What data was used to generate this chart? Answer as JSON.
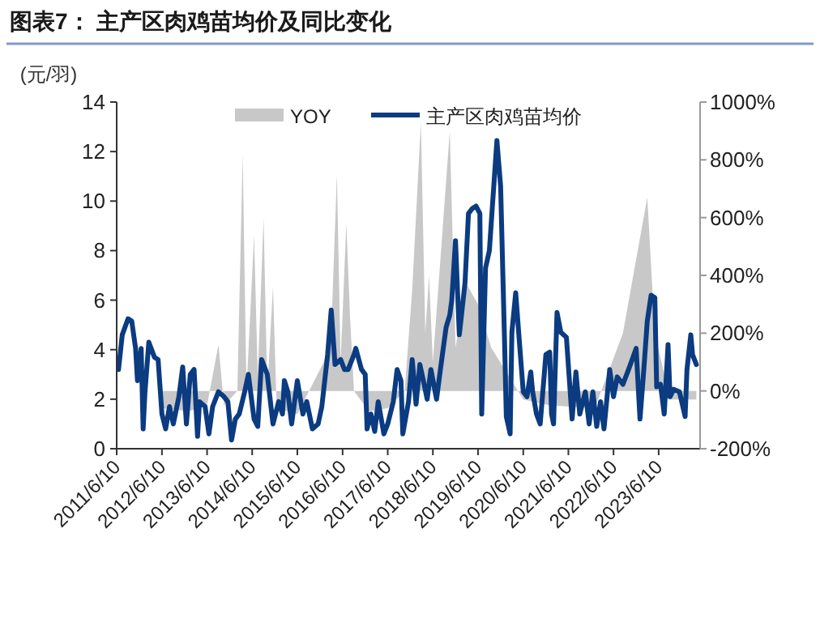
{
  "chart_data": {
    "type": "line",
    "title": "图表7：  主产区肉鸡苗均价及同比变化",
    "ylabel": "(元/羽)",
    "xlim": [
      "2011-06-10",
      "2024-05-10"
    ],
    "xticks": [
      {
        "value": "2011-06-10",
        "label": "2011/6/10"
      },
      {
        "value": "2012-06-10",
        "label": "2012/6/10"
      },
      {
        "value": "2013-06-10",
        "label": "2013/6/10"
      },
      {
        "value": "2014-06-10",
        "label": "2014/6/10"
      },
      {
        "value": "2015-06-10",
        "label": "2015/6/10"
      },
      {
        "value": "2016-06-10",
        "label": "2016/6/10"
      },
      {
        "value": "2017-06-10",
        "label": "2017/6/10"
      },
      {
        "value": "2018-06-10",
        "label": "2018/6/10"
      },
      {
        "value": "2019-06-10",
        "label": "2019/6/10"
      },
      {
        "value": "2020-06-10",
        "label": "2020/6/10"
      },
      {
        "value": "2021-06-10",
        "label": "2021/6/10"
      },
      {
        "value": "2022-06-10",
        "label": "2022/6/10"
      },
      {
        "value": "2023-06-10",
        "label": "2023/6/10"
      }
    ],
    "ylim": [
      0,
      14
    ],
    "yticks": [
      0,
      2,
      4,
      6,
      8,
      10,
      12,
      14
    ],
    "y2lim": [
      -200,
      1000
    ],
    "y2ticks": [
      {
        "value": -200,
        "label": "-200%"
      },
      {
        "value": 0,
        "label": "0%"
      },
      {
        "value": 200,
        "label": "200%"
      },
      {
        "value": 400,
        "label": "400%"
      },
      {
        "value": 600,
        "label": "600%"
      },
      {
        "value": 800,
        "label": "800%"
      },
      {
        "value": 1000,
        "label": "1000%"
      }
    ],
    "legend": "top",
    "series": [
      {
        "name": "YOY",
        "type": "area",
        "axis": "y2",
        "color": "#c8c8c8",
        "x": [
          "2012-06-10",
          "2013-01-10",
          "2013-06-10",
          "2013-09-10",
          "2013-10-25",
          "2014-02-10",
          "2014-03-25",
          "2014-04-25",
          "2014-06-25",
          "2014-07-25",
          "2014-09-10",
          "2014-10-10",
          "2014-11-25",
          "2014-12-25",
          "2015-06-10",
          "2016-01-10",
          "2016-03-10",
          "2016-04-25",
          "2016-05-25",
          "2016-07-10",
          "2016-08-10",
          "2016-09-10",
          "2017-01-10",
          "2017-06-10",
          "2017-10-25",
          "2017-12-25",
          "2018-03-05",
          "2018-04-10",
          "2018-05-10",
          "2018-06-10",
          "2018-10-25",
          "2018-12-10",
          "2019-03-10",
          "2019-06-10",
          "2019-09-25",
          "2020-06-10",
          "2021-01-10",
          "2022-01-10",
          "2022-08-25",
          "2023-03-10",
          "2023-05-10",
          "2023-09-10",
          "2024-04-10"
        ],
        "values": [
          -60,
          -70,
          -50,
          160,
          -50,
          0,
          820,
          0,
          540,
          50,
          600,
          0,
          360,
          -60,
          -80,
          100,
          200,
          750,
          100,
          580,
          250,
          0,
          -70,
          -60,
          0,
          350,
          930,
          200,
          400,
          100,
          900,
          150,
          370,
          300,
          150,
          -30,
          -50,
          -60,
          200,
          670,
          200,
          -30,
          -30
        ]
      },
      {
        "name": "主产区肉鸡苗均价",
        "color": "#0b3b80",
        "x": [
          "2011-06-25",
          "2011-07-25",
          "2011-09-10",
          "2011-10-10",
          "2011-11-10",
          "2011-11-25",
          "2011-12-25",
          "2012-01-10",
          "2012-01-25",
          "2012-02-25",
          "2012-04-10",
          "2012-05-10",
          "2012-06-10",
          "2012-07-10",
          "2012-08-10",
          "2012-09-10",
          "2012-10-25",
          "2012-11-25",
          "2012-12-25",
          "2013-01-25",
          "2013-02-25",
          "2013-03-25",
          "2013-04-10",
          "2013-05-25",
          "2013-06-25",
          "2013-07-25",
          "2013-09-10",
          "2013-10-25",
          "2013-11-25",
          "2013-12-25",
          "2014-01-25",
          "2014-02-25",
          "2014-04-10",
          "2014-05-10",
          "2014-06-25",
          "2014-07-25",
          "2014-08-25",
          "2014-10-10",
          "2014-11-25",
          "2015-01-10",
          "2015-02-10",
          "2015-02-25",
          "2015-03-25",
          "2015-04-25",
          "2015-06-10",
          "2015-07-25",
          "2015-08-25",
          "2015-10-10",
          "2015-11-25",
          "2015-12-25",
          "2016-02-10",
          "2016-03-10",
          "2016-04-10",
          "2016-05-25",
          "2016-06-25",
          "2016-07-25",
          "2016-09-10",
          "2016-09-25",
          "2016-11-10",
          "2016-12-10",
          "2016-12-25",
          "2017-01-25",
          "2017-02-25",
          "2017-03-25",
          "2017-05-10",
          "2017-06-10",
          "2017-07-25",
          "2017-08-25",
          "2017-09-25",
          "2017-10-10",
          "2017-11-25",
          "2017-12-25",
          "2018-01-25",
          "2018-02-25",
          "2018-03-25",
          "2018-04-25",
          "2018-05-25",
          "2018-07-10",
          "2018-08-10",
          "2018-09-25",
          "2018-10-25",
          "2018-11-10",
          "2018-12-10",
          "2019-01-10",
          "2019-02-25",
          "2019-03-25",
          "2019-04-25",
          "2019-05-25",
          "2019-06-25",
          "2019-07-10",
          "2019-08-10",
          "2019-09-10",
          "2019-10-10",
          "2019-11-10",
          "2019-12-10",
          "2020-01-10",
          "2020-01-25",
          "2020-02-25",
          "2020-03-10",
          "2020-04-10",
          "2020-05-10",
          "2020-06-10",
          "2020-07-10",
          "2020-08-10",
          "2020-08-25",
          "2020-09-25",
          "2020-10-25",
          "2020-12-10",
          "2021-01-10",
          "2021-01-25",
          "2021-02-10",
          "2021-03-10",
          "2021-04-10",
          "2021-05-25",
          "2021-07-10",
          "2021-08-10",
          "2021-09-10",
          "2021-10-25",
          "2021-11-25",
          "2021-12-25",
          "2022-01-25",
          "2022-02-25",
          "2022-03-25",
          "2022-05-10",
          "2022-06-10",
          "2022-07-10",
          "2022-08-25",
          "2022-10-10",
          "2022-12-10",
          "2023-01-10",
          "2023-02-10",
          "2023-03-10",
          "2023-04-10",
          "2023-05-10",
          "2023-05-25",
          "2023-06-25",
          "2023-07-25",
          "2023-08-25",
          "2023-09-10",
          "2023-10-10",
          "2023-11-25",
          "2024-01-10",
          "2024-01-25",
          "2024-02-25",
          "2024-03-10",
          "2024-04-10"
        ],
        "values": [
          3.2,
          4.6,
          5.25,
          5.15,
          4.05,
          2.75,
          4.05,
          0.8,
          2.3,
          4.3,
          3.7,
          3.6,
          1.4,
          0.8,
          1.7,
          1.0,
          2.1,
          3.3,
          1.0,
          3.0,
          3.2,
          0.5,
          1.9,
          1.7,
          0.6,
          1.7,
          2.3,
          2.1,
          1.9,
          0.35,
          1.2,
          1.4,
          2.3,
          3.0,
          1.2,
          0.9,
          3.6,
          3.0,
          1.0,
          1.9,
          1.4,
          2.75,
          2.3,
          1.0,
          2.75,
          1.4,
          1.9,
          0.8,
          1.0,
          1.7,
          3.8,
          5.6,
          3.4,
          3.6,
          3.2,
          3.2,
          3.8,
          4.05,
          3.2,
          3.0,
          0.8,
          1.4,
          0.7,
          1.9,
          0.6,
          1.0,
          1.9,
          3.2,
          2.75,
          0.6,
          1.9,
          3.6,
          1.8,
          3.4,
          2.75,
          2.0,
          3.2,
          2.0,
          3.2,
          4.9,
          5.4,
          6.0,
          8.4,
          4.6,
          6.7,
          9.5,
          9.7,
          9.8,
          9.5,
          1.4,
          7.3,
          8.0,
          10.2,
          12.45,
          10.6,
          4.5,
          1.3,
          0.6,
          4.7,
          6.3,
          4.3,
          2.3,
          2.1,
          3.1,
          2.3,
          1.4,
          1.0,
          3.8,
          3.9,
          1.4,
          1.0,
          5.5,
          4.7,
          4.5,
          1.2,
          3.1,
          1.4,
          2.3,
          1.0,
          2.3,
          0.9,
          1.9,
          0.8,
          3.2,
          2.1,
          2.9,
          2.6,
          3.2,
          4.05,
          1.2,
          3.2,
          5.15,
          6.2,
          6.1,
          2.5,
          2.6,
          1.4,
          4.2,
          2.1,
          2.4,
          2.3,
          1.3,
          3.2,
          4.6,
          3.8,
          3.4
        ]
      }
    ]
  }
}
